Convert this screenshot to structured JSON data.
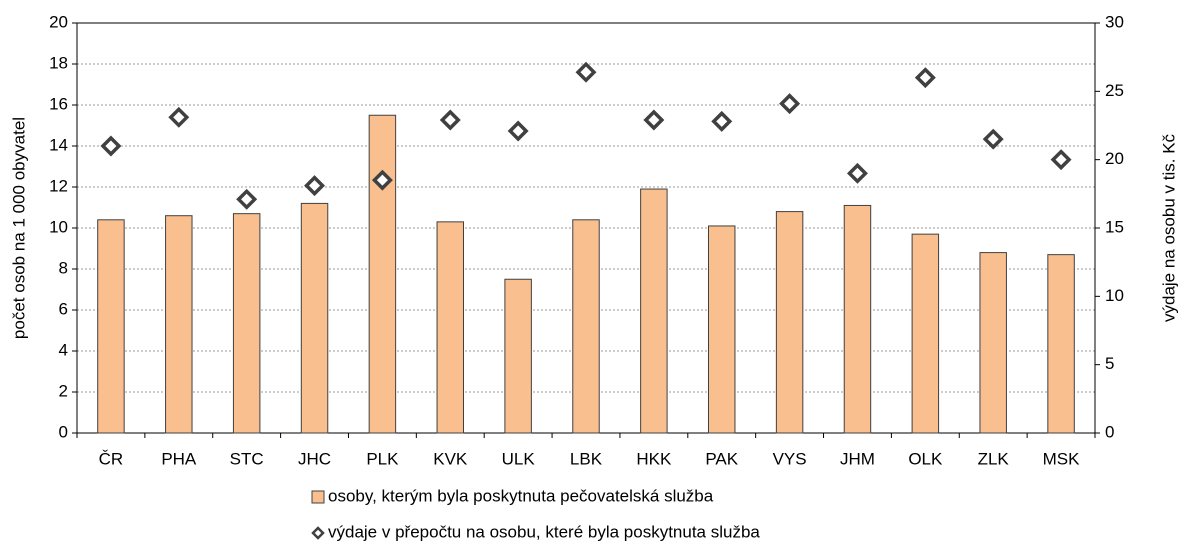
{
  "chart_data": {
    "type": "bar",
    "categories": [
      "ČR",
      "PHA",
      "STC",
      "JHC",
      "PLK",
      "KVK",
      "ULK",
      "LBK",
      "HKK",
      "PAK",
      "VYS",
      "JHM",
      "OLK",
      "ZLK",
      "MSK"
    ],
    "series": [
      {
        "name": "osoby, kterým byla poskytnuta pečovatelská služba",
        "type": "bar",
        "color": "#fabf8f",
        "values": [
          10.4,
          10.6,
          10.7,
          11.2,
          15.5,
          10.3,
          7.5,
          10.4,
          11.9,
          10.1,
          10.8,
          11.1,
          9.7,
          8.8,
          8.7
        ]
      },
      {
        "name": "výdaje v přepočtu na osobu, které byla poskytnuta služba",
        "type": "scatter",
        "axis": "y2",
        "color": "#404040",
        "values": [
          21.0,
          23.1,
          17.1,
          18.1,
          18.5,
          22.9,
          22.1,
          26.4,
          22.9,
          22.8,
          24.1,
          19.0,
          26.0,
          21.5,
          20.0
        ]
      }
    ],
    "ylabel": "počet osob na 1 000 obyvatel",
    "y2label": "výdaje na osobu v tis. Kč",
    "ylim": [
      0,
      20
    ],
    "yticks": [
      0,
      2,
      4,
      6,
      8,
      10,
      12,
      14,
      16,
      18,
      20
    ],
    "y2lim": [
      0,
      30
    ],
    "y2ticks": [
      0,
      5,
      10,
      15,
      20,
      25,
      30
    ],
    "grid": true
  }
}
